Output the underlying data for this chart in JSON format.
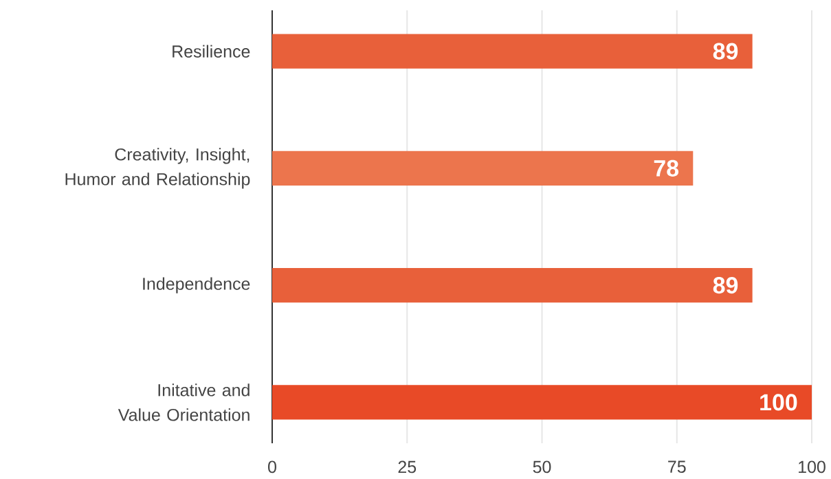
{
  "chart_data": {
    "type": "bar",
    "orientation": "horizontal",
    "categories": [
      "Resilience",
      "Creativity, Insight, Humor and Relationship",
      "Independence",
      "Initative and Value Orientation"
    ],
    "values": [
      89,
      78,
      89,
      100
    ],
    "colors": [
      "#e8603a",
      "#ec754d",
      "#e8603a",
      "#e84a27"
    ],
    "xlim": [
      0,
      100
    ],
    "xticks": [
      0,
      25,
      50,
      75,
      100
    ],
    "grid": "x",
    "data_labels": true
  }
}
